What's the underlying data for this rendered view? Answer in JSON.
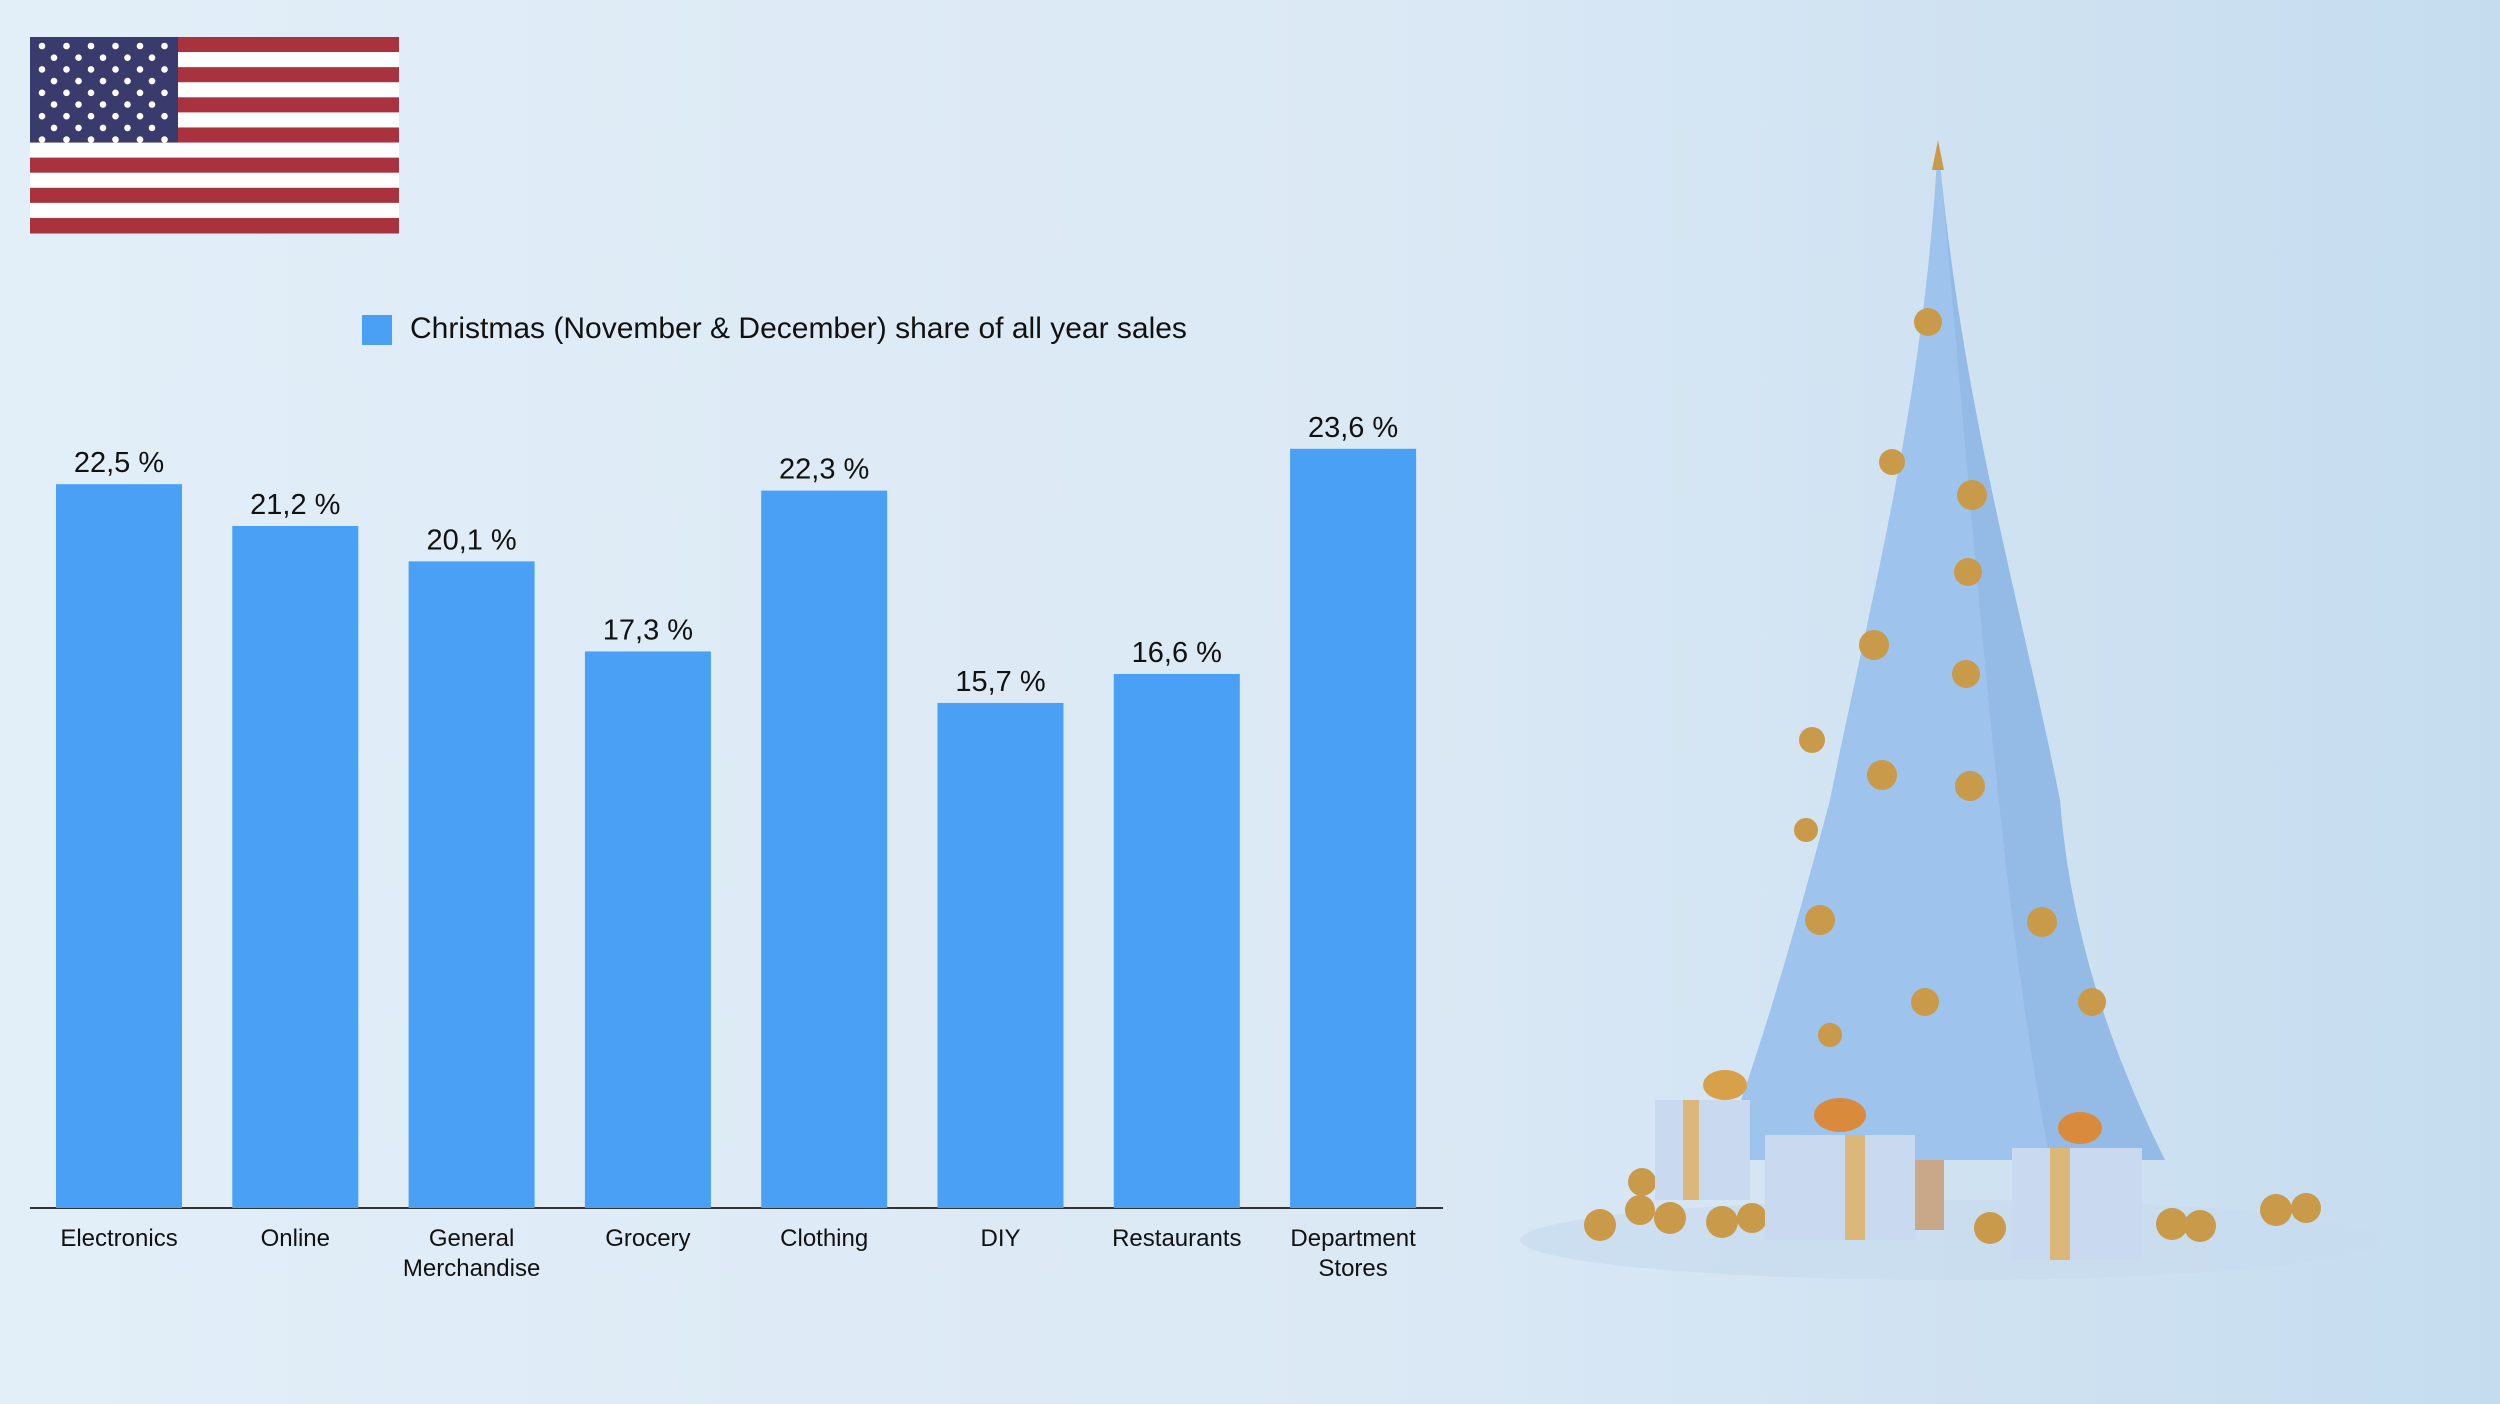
{
  "chart_data": {
    "type": "bar",
    "categories": [
      "Electronics",
      "Online",
      "General Merchandise",
      "Grocery",
      "Clothing",
      "DIY",
      "Restaurants",
      "Department Stores"
    ],
    "series": [
      {
        "name": "Christmas (November & December) share of all year sales",
        "color": "#4aa0f5",
        "values": [
          22.5,
          21.2,
          20.1,
          17.3,
          22.3,
          15.7,
          16.6,
          23.6
        ],
        "value_labels": [
          "22,5 %",
          "21,2 %",
          "20,1 %",
          "17,3 %",
          "22,3 %",
          "15,7 %",
          "16,6 %",
          "23,6 %"
        ]
      }
    ]
  }
}
